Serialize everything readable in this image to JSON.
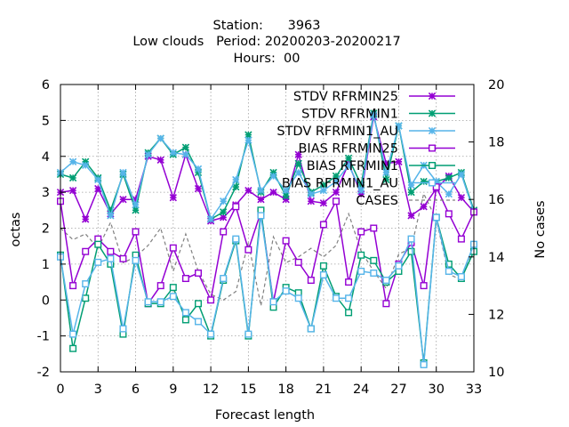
{
  "chart_data": {
    "type": "line",
    "title_lines": [
      "Station:      3963",
      "Low clouds   Period: 20200203-20200217",
      "Hours:  00"
    ],
    "xlabel": "Forecast length",
    "ylabel": "octas",
    "y2label": "No cases",
    "xlim": [
      0,
      33
    ],
    "ylim": [
      -2,
      6
    ],
    "y2lim": [
      10,
      20
    ],
    "x_ticks": [
      0,
      3,
      6,
      9,
      12,
      15,
      18,
      21,
      24,
      27,
      30,
      33
    ],
    "y_ticks": [
      -2,
      -1,
      0,
      1,
      2,
      3,
      4,
      5,
      6
    ],
    "y2_ticks": [
      10,
      12,
      14,
      16,
      18,
      20
    ],
    "grid": true,
    "legend_position": "top-right",
    "x": [
      0,
      1,
      2,
      3,
      4,
      5,
      6,
      7,
      8,
      9,
      10,
      11,
      12,
      13,
      14,
      15,
      16,
      17,
      18,
      19,
      20,
      21,
      22,
      23,
      24,
      25,
      26,
      27,
      28,
      29,
      30,
      31,
      32,
      33
    ],
    "series": [
      {
        "name": "STDV RFRMIN25",
        "color": "#9400d3",
        "marker": "x-star",
        "axis": "y",
        "values": [
          3.0,
          3.05,
          2.25,
          3.1,
          2.4,
          2.8,
          2.8,
          4.0,
          3.9,
          2.85,
          4.05,
          3.1,
          2.2,
          2.3,
          2.65,
          3.05,
          2.8,
          3.0,
          2.8,
          4.05,
          2.75,
          2.7,
          3.0,
          3.8,
          2.95,
          5.1,
          3.8,
          3.85,
          2.35,
          2.6,
          3.1,
          3.45,
          2.85,
          2.45
        ]
      },
      {
        "name": "STDV RFRMIN1",
        "color": "#009e73",
        "marker": "x-star",
        "axis": "y",
        "values": [
          3.5,
          3.4,
          3.85,
          3.4,
          2.5,
          3.5,
          2.5,
          4.1,
          4.5,
          4.05,
          4.25,
          3.55,
          2.25,
          2.45,
          3.15,
          4.6,
          3.0,
          3.55,
          2.9,
          3.8,
          3.0,
          3.2,
          3.45,
          3.95,
          3.2,
          5.2,
          3.35,
          4.85,
          3.0,
          3.3,
          3.3,
          3.4,
          3.55,
          2.5
        ]
      },
      {
        "name": "STDV RFRMIN1_AU",
        "color": "#56b4e9",
        "marker": "x-star",
        "axis": "y",
        "values": [
          3.55,
          3.85,
          3.75,
          3.35,
          2.35,
          3.55,
          2.65,
          4.05,
          4.5,
          4.1,
          4.05,
          3.65,
          2.25,
          2.75,
          3.35,
          4.45,
          3.05,
          3.45,
          3.05,
          3.55,
          2.95,
          3.05,
          3.3,
          3.75,
          3.05,
          5.15,
          3.55,
          4.85,
          3.2,
          3.75,
          3.3,
          2.95,
          3.5,
          2.45
        ]
      },
      {
        "name": "BIAS RFRMIN25",
        "color": "#9400d3",
        "marker": "square",
        "axis": "y",
        "values": [
          2.75,
          0.4,
          1.35,
          1.7,
          1.35,
          1.15,
          1.9,
          -0.1,
          0.4,
          1.45,
          0.6,
          0.75,
          0.0,
          1.9,
          2.6,
          1.4,
          2.45,
          -0.05,
          1.65,
          1.05,
          0.55,
          2.1,
          2.75,
          0.5,
          1.9,
          2.0,
          -0.1,
          1.0,
          1.6,
          0.4,
          3.15,
          2.4,
          1.7,
          2.45
        ]
      },
      {
        "name": "BIAS RFRMIN1",
        "color": "#009e73",
        "marker": "square",
        "axis": "y",
        "values": [
          1.25,
          -1.35,
          0.05,
          1.55,
          1.0,
          -0.95,
          1.25,
          -0.1,
          -0.1,
          0.35,
          -0.55,
          -0.1,
          -1.0,
          0.55,
          1.65,
          -1.0,
          2.5,
          -0.2,
          0.35,
          0.2,
          -0.8,
          0.95,
          0.1,
          -0.35,
          1.25,
          1.1,
          0.5,
          0.8,
          1.35,
          -1.75,
          2.3,
          1.0,
          0.6,
          1.35
        ]
      },
      {
        "name": "BIAS RFRMIN1_AU",
        "color": "#56b4e9",
        "marker": "square",
        "axis": "y",
        "values": [
          1.2,
          -0.95,
          0.45,
          1.05,
          1.15,
          -0.8,
          1.1,
          -0.05,
          -0.05,
          0.1,
          -0.35,
          -0.6,
          -0.95,
          0.6,
          1.7,
          -0.95,
          2.35,
          -0.05,
          0.25,
          0.05,
          -0.8,
          0.7,
          0.05,
          0.05,
          0.8,
          0.75,
          0.55,
          0.95,
          1.7,
          -1.8,
          2.3,
          0.8,
          0.65,
          1.55
        ]
      },
      {
        "name": "CASES",
        "color": "#808080",
        "marker": "none",
        "dashed": true,
        "axis": "y2",
        "values": [
          15.0,
          14.6,
          14.8,
          14.3,
          15.2,
          13.8,
          14.0,
          14.4,
          15.0,
          13.5,
          14.8,
          13.5,
          12.7,
          12.5,
          12.8,
          14.5,
          12.3,
          14.7,
          13.8,
          14.0,
          14.3,
          14.0,
          14.4,
          15.5,
          14.2,
          13.5,
          12.9,
          14.1,
          14.3,
          16.2,
          15.3,
          13.4,
          13.2,
          14.3
        ]
      }
    ]
  }
}
